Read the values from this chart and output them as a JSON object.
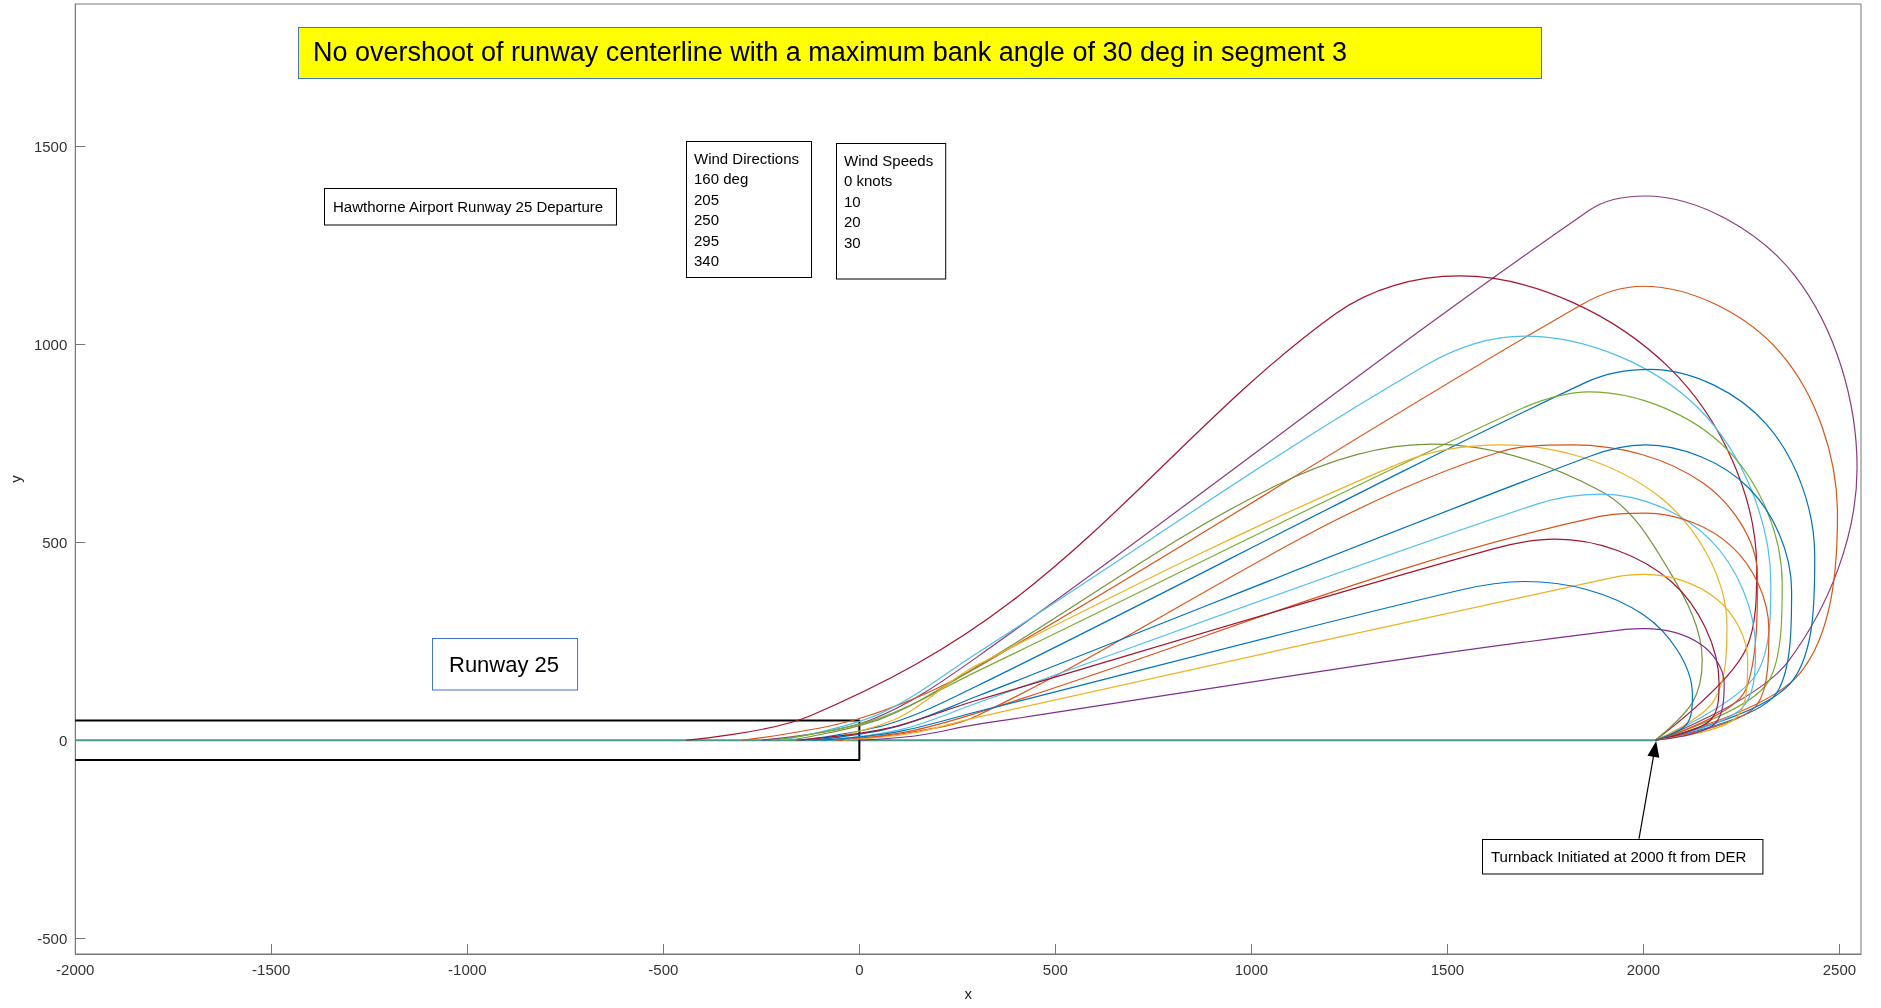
{
  "chart_data": {
    "type": "line",
    "title": "No overshoot of runway centerline with a maximum bank angle of 30 deg in segment 3",
    "xlabel": "x",
    "ylabel": "y",
    "xlim": [
      -2000,
      2555
    ],
    "ylim": [
      -540,
      1860
    ],
    "xticks": [
      -2000,
      -1500,
      -1000,
      -500,
      0,
      500,
      1000,
      1500,
      2000,
      2500
    ],
    "yticks": [
      -500,
      0,
      500,
      1000,
      1500
    ],
    "grid": false,
    "marker": "none",
    "annotations": [
      "Hawthorne Airport Runway 25 Departure",
      "Wind Directions\n160 deg\n205\n250\n295\n340",
      "Wind Speeds\n0 knots\n10\n20\n30",
      "Runway 25",
      "Turnback Initiated at 2000 ft from DER"
    ],
    "series": [
      {
        "color": "#4a9a8c",
        "x": [
          -2000,
          2030
        ],
        "values": [
          0,
          0
        ]
      },
      {
        "color": "#000000",
        "x": [
          -2000,
          0,
          0,
          -2000
        ],
        "values": [
          50,
          50,
          -50,
          -50
        ]
      },
      {
        "color": "#8a3b7a",
        "x": [
          -250,
          25,
          300,
          1862,
          2004,
          2386,
          2545,
          2370,
          2030
        ],
        "values": [
          0,
          50,
          210,
          1339,
          1375,
          1174,
          688,
          200,
          0
        ]
      },
      {
        "color": "#a2142f",
        "x": [
          -442,
          -125,
          391,
          1211,
          1531,
          2067,
          2289,
          2262,
          2030
        ],
        "values": [
          0,
          62,
          353,
          1075,
          1173,
          940,
          435,
          231,
          0
        ]
      },
      {
        "color": "#d95319",
        "x": [
          -300,
          0,
          300,
          1843,
          1999,
          2350,
          2495,
          2400,
          2030
        ],
        "values": [
          0,
          55,
          184,
          1101,
          1147,
          978,
          571,
          170,
          0
        ]
      },
      {
        "color": "#4dbeee",
        "x": [
          -200,
          50,
          300,
          1446,
          1697,
          2141,
          2325,
          2290,
          2030
        ],
        "values": [
          0,
          66,
          220,
          948,
          1021,
          838,
          396,
          170,
          0
        ]
      },
      {
        "color": "#0072bd",
        "x": [
          -150,
          75,
          300,
          1853,
          2018,
          2314,
          2437,
          2380,
          2030
        ],
        "values": [
          0,
          41,
          137,
          904,
          937,
          798,
          464,
          150,
          0
        ]
      },
      {
        "color": "#77ac30",
        "x": [
          -220,
          40,
          300,
          1678,
          1862,
          2210,
          2354,
          2320,
          2030
        ],
        "values": [
          0,
          52,
          174,
          833,
          880,
          738,
          396,
          150,
          0
        ]
      },
      {
        "color": "#76923c",
        "x": [
          -180,
          60,
          300,
          1062,
          1459,
          1892,
          2067,
          2150,
          2125,
          2030
        ],
        "values": [
          0,
          56,
          186,
          643,
          748,
          629,
          426,
          202,
          95,
          0
        ]
      },
      {
        "color": "#edb120",
        "x": [
          -100,
          100,
          300,
          1380,
          1639,
          2045,
          2213,
          2180,
          2030
        ],
        "values": [
          0,
          57,
          190,
          700,
          746,
          612,
          290,
          100,
          0
        ]
      },
      {
        "color": "#d95319",
        "x": [
          -50,
          125,
          300,
          1629,
          1819,
          2153,
          2291,
          2262,
          2030
        ],
        "values": [
          0,
          19,
          62,
          727,
          746,
          649,
          416,
          130,
          0
        ]
      },
      {
        "color": "#0072bd",
        "x": [
          -120,
          90,
          300,
          1862,
          2004,
          2268,
          2378,
          2340,
          2030
        ],
        "values": [
          0,
          33,
          111,
          717,
          746,
          638,
          377,
          120,
          0
        ]
      },
      {
        "color": "#4dbeee",
        "x": [
          -80,
          110,
          300,
          1726,
          1892,
          2170,
          2286,
          2250,
          2030
        ],
        "values": [
          0,
          28,
          94,
          596,
          622,
          507,
          231,
          80,
          0
        ]
      },
      {
        "color": "#d95319",
        "x": [
          -60,
          120,
          300,
          1892,
          2004,
          2227,
          2320,
          2290,
          2030
        ],
        "values": [
          0,
          21,
          69,
          566,
          574,
          488,
          280,
          90,
          0
        ]
      },
      {
        "color": "#a2142f",
        "x": [
          -160,
          70,
          300,
          1619,
          1775,
          2071,
          2193,
          2170,
          2030
        ],
        "values": [
          0,
          30,
          101,
          484,
          508,
          401,
          144,
          50,
          0
        ]
      },
      {
        "color": "#edb120",
        "x": [
          -40,
          130,
          300,
          1921,
          2004,
          2189,
          2266,
          2240,
          2030
        ],
        "values": [
          0,
          17,
          58,
          411,
          419,
          355,
          202,
          60,
          0
        ]
      },
      {
        "color": "#0072bd",
        "x": [
          -100,
          100,
          300,
          1531,
          1697,
          2000,
          2125,
          2110,
          2030
        ],
        "values": [
          0,
          22,
          72,
          379,
          401,
          317,
          115,
          40,
          0
        ]
      },
      {
        "color": "#7e2f8e",
        "x": [
          0,
          150,
          300,
          1955,
          2004,
          2147,
          2206,
          2180,
          2030
        ],
        "values": [
          0,
          12,
          40,
          280,
          282,
          242,
          144,
          40,
          0
        ]
      }
    ]
  }
}
